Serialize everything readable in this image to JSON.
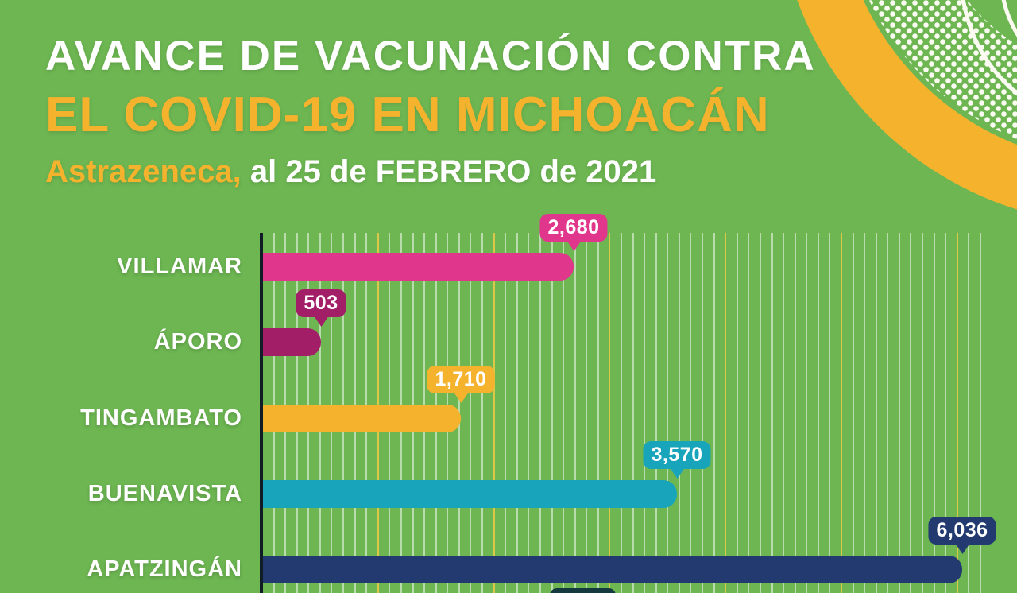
{
  "header": {
    "title_line1": "AVANCE DE VACUNACIÓN CONTRA",
    "title_line2": "EL COVID-19 EN MICHOACÁN",
    "subtitle_brand": "Astrazeneca,",
    "subtitle_rest": " al 25 de FEBRERO de 2021"
  },
  "colors": {
    "background": "#6db652",
    "title_white": "#ffffff",
    "title_yellow": "#f5b32d",
    "axis": "#101d27",
    "gridline_minor": "rgba(255,255,255,0.52)",
    "gridline_major": "rgba(226,201,72,0.95)",
    "deco_yellow_ring": "#f5b32d",
    "deco_white": "#fbfbf2",
    "cutoff_badge": "#143a40"
  },
  "chart_data": {
    "type": "bar",
    "orientation": "horizontal",
    "title": "AVANCE DE VACUNACIÓN CONTRA EL COVID-19 EN MICHOACÁN — Astrazeneca, al 25 de FEBRERO de 2021",
    "categories": [
      "VILLAMAR",
      "ÁPORO",
      "TINGAMBATO",
      "BUENAVISTA",
      "APATZINGÁN"
    ],
    "values": [
      2680,
      503,
      1710,
      3570,
      6036
    ],
    "value_labels": [
      "2,680",
      "503",
      "1,710",
      "3,570",
      "6,036"
    ],
    "bar_colors": [
      "#e0378c",
      "#a21e66",
      "#f5b32d",
      "#18a4ba",
      "#223a70"
    ],
    "xlabel": "",
    "ylabel": "",
    "xlim": [
      0,
      6300
    ],
    "gridline_step": 100,
    "major_gridline_step": 1000,
    "grid": true,
    "legend": false
  }
}
